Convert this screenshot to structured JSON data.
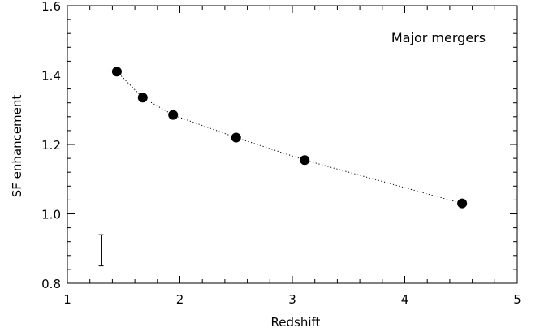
{
  "chart_data": {
    "type": "scatter",
    "xlabel": "Redshift",
    "ylabel": "SF enhancement",
    "xlim": [
      1,
      5
    ],
    "ylim": [
      0.8,
      1.6
    ],
    "x_ticks": [
      1,
      2,
      3,
      4,
      5
    ],
    "y_ticks": [
      0.8,
      1.0,
      1.2,
      1.4,
      1.6
    ],
    "x_tick_labels": [
      "1",
      "2",
      "3",
      "4",
      "5"
    ],
    "y_tick_labels": [
      "0.8",
      "1.0",
      "1.2",
      "1.4",
      "1.6"
    ],
    "annotation": "Major mergers",
    "grid": false,
    "series": [
      {
        "marker": "filled-circle",
        "line": "dotted",
        "points": [
          {
            "x": 1.44,
            "y": 1.41
          },
          {
            "x": 1.67,
            "y": 1.335
          },
          {
            "x": 1.94,
            "y": 1.285
          },
          {
            "x": 2.5,
            "y": 1.22
          },
          {
            "x": 3.11,
            "y": 1.155
          },
          {
            "x": 4.51,
            "y": 1.03
          }
        ]
      }
    ],
    "error_bar": {
      "x": 1.3,
      "y_low": 0.85,
      "y_high": 0.94
    }
  }
}
